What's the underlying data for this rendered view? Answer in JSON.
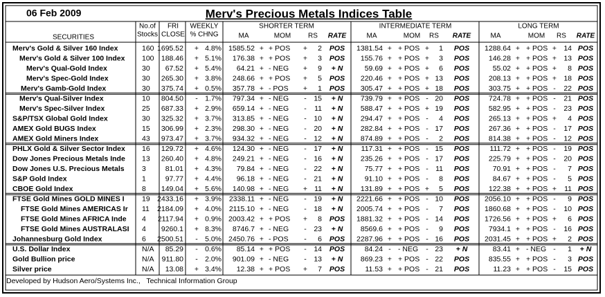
{
  "header": {
    "date": "06 Feb 2009",
    "title": "Merv's Precious Metals Indices Table"
  },
  "table": {
    "group_headers": [
      "SHORTER TERM",
      "INTERMEDIATE TERM",
      "LONG TERM"
    ],
    "columns": [
      "SECURITIES",
      "No.of",
      "Stocks",
      "FRI",
      "CLOSE",
      "WEEKLY",
      "% CHNG",
      "MA",
      "MOM",
      "RS",
      "RATE",
      "MA",
      "MOM",
      "RS",
      "RATE",
      "MA",
      "MOM",
      "RS",
      "RATE"
    ],
    "rows": [
      [
        "Merv's Gold & Silver 160 Index",
        "160",
        "1695.52",
        "+",
        "4.8%",
        "1585.52",
        "+",
        "+ POS",
        "+",
        "2",
        "POS",
        "1381.54",
        "+",
        "+ POS",
        "+",
        "1",
        "POS",
        "1288.64",
        "+",
        "+ POS",
        "+",
        "14",
        "POS"
      ],
      [
        "Merv's Gold & Silver 100 Index",
        "100",
        "188.46",
        "+",
        "5.1%",
        "176.38",
        "+",
        "+ POS",
        "+",
        "3",
        "POS",
        "155.76",
        "+",
        "+ POS",
        "+",
        "3",
        "POS",
        "146.28",
        "+",
        "+ POS",
        "+",
        "13",
        "POS"
      ],
      [
        "Merv's Qual-Gold Index",
        "30",
        "67.52",
        "+",
        "5.4%",
        "64.21",
        "+",
        "- NEG",
        "+",
        "9",
        "+ N",
        "59.69",
        "+",
        "+ POS",
        "+",
        "6",
        "POS",
        "55.02",
        "+",
        "+ POS",
        "+",
        "8",
        "POS"
      ],
      [
        "Merv's Spec-Gold Index",
        "30",
        "265.30",
        "+",
        "3.8%",
        "248.66",
        "+",
        "+ POS",
        "+",
        "5",
        "POS",
        "220.46",
        "+",
        "+ POS",
        "+",
        "13",
        "POS",
        "208.13",
        "+",
        "+ POS",
        "+",
        "18",
        "POS"
      ],
      [
        "Merv's Gamb-Gold Index",
        "30",
        "375.74",
        "+",
        "0.5%",
        "357.78",
        "+",
        "- POS",
        "+",
        "1",
        "POS",
        "305.47",
        "+",
        "+ POS",
        "+",
        "18",
        "POS",
        "303.75",
        "+",
        "+ POS",
        "-",
        "22",
        "POS"
      ],
      [
        "Merv's Qual-Silver Index",
        "10",
        "804.50",
        "-",
        "1.7%",
        "797.34",
        "+",
        "- NEG",
        "-",
        "15",
        "+ N",
        "739.79",
        "+",
        "+ POS",
        "-",
        "20",
        "POS",
        "724.78",
        "+",
        "+ POS",
        "-",
        "21",
        "POS"
      ],
      [
        "Merv's Spec-Silver Index",
        "25",
        "687.33",
        "+",
        "2.9%",
        "659.14",
        "+",
        "- NEG",
        "-",
        "11",
        "+ N",
        "588.47",
        "+",
        "+ POS",
        "+",
        "19",
        "POS",
        "582.95",
        "+",
        "+ POS",
        "-",
        "23",
        "POS"
      ],
      [
        "S&P/TSX Global Gold Index",
        "30",
        "325.32",
        "+",
        "3.7%",
        "313.85",
        "+",
        "- NEG",
        "-",
        "10",
        "+ N",
        "294.47",
        "+",
        "+ POS",
        "-",
        "4",
        "POS",
        "265.13",
        "+",
        "+ POS",
        "+",
        "4",
        "POS"
      ],
      [
        "AMEX Gold BUGS Index",
        "15",
        "306.99",
        "+",
        "2.3%",
        "298.30",
        "+",
        "- NEG",
        "-",
        "20",
        "+ N",
        "282.84",
        "+",
        "+ POS",
        "-",
        "17",
        "POS",
        "267.36",
        "+",
        "+ POS",
        "-",
        "17",
        "POS"
      ],
      [
        "AMEX Gold Miners Index",
        "43",
        "973.47",
        "+",
        "3.7%",
        "934.32",
        "+",
        "- NEG",
        "-",
        "12",
        "+ N",
        "874.89",
        "+",
        "+ POS",
        "-",
        "2",
        "POS",
        "814.38",
        "+",
        "+ POS",
        "-",
        "12",
        "POS"
      ],
      [
        "PHLX Gold & Silver Sector Index",
        "16",
        "129.72",
        "+",
        "4.6%",
        "124.30",
        "+",
        "- NEG",
        "-",
        "17",
        "+ N",
        "117.31",
        "+",
        "+ POS",
        "-",
        "15",
        "POS",
        "111.72",
        "+",
        "+ POS",
        "-",
        "19",
        "POS"
      ],
      [
        "Dow Jones Precious Metals Inde",
        "13",
        "260.40",
        "+",
        "4.8%",
        "249.21",
        "+",
        "- NEG",
        "-",
        "16",
        "+ N",
        "235.26",
        "+",
        "+ POS",
        "-",
        "17",
        "POS",
        "225.79",
        "+",
        "+ POS",
        "-",
        "20",
        "POS"
      ],
      [
        "Dow Jones U.S. Precious Metals",
        "3",
        "81.01",
        "+",
        "4.3%",
        "79.84",
        "+",
        "- NEG",
        "-",
        "22",
        "+ N",
        "75.77",
        "+",
        "+ POS",
        "-",
        "11",
        "POS",
        "70.91",
        "+",
        "+ POS",
        "-",
        "7",
        "POS"
      ],
      [
        "S&P Gold Index",
        "1",
        "97.77",
        "+",
        "4.4%",
        "96.18",
        "+",
        "- NEG",
        "-",
        "21",
        "+ N",
        "91.10",
        "+",
        "+ POS",
        "-",
        "8",
        "POS",
        "84.67",
        "+",
        "+ POS",
        "-",
        "5",
        "POS"
      ],
      [
        "CBOE Gold Index",
        "8",
        "149.04",
        "+",
        "5.6%",
        "140.98",
        "+",
        "- NEG",
        "+",
        "11",
        "+ N",
        "131.89",
        "+",
        "+ POS",
        "+",
        "5",
        "POS",
        "122.38",
        "+",
        "+ POS",
        "+",
        "11",
        "POS"
      ],
      [
        "FTSE Gold Mines GOLD MINES I",
        "19",
        "2433.16",
        "+",
        "3.9%",
        "2338.11",
        "+",
        "- NEG",
        "-",
        "19",
        "+ N",
        "2221.66",
        "+",
        "+ POS",
        "-",
        "10",
        "POS",
        "2056.10",
        "+",
        "+ POS",
        "-",
        "9",
        "POS"
      ],
      [
        "FTSE Gold Mines AMERICAS Ir",
        "11",
        "2184.09",
        "+",
        "4.0%",
        "2115.10",
        "+",
        "- NEG",
        "-",
        "18",
        "+ N",
        "2005.74",
        "+",
        "+ POS",
        "-",
        "7",
        "POS",
        "1860.68",
        "+",
        "+ POS",
        "-",
        "10",
        "POS"
      ],
      [
        "FTSE Gold Mines AFRICA Inde",
        "4",
        "2117.94",
        "+",
        "0.9%",
        "2003.42",
        "+",
        "+ POS",
        "+",
        "8",
        "POS",
        "1881.32",
        "+",
        "+ POS",
        "-",
        "14",
        "POS",
        "1726.56",
        "+",
        "+ POS",
        "+",
        "6",
        "POS"
      ],
      [
        "FTSE Gold Mines AUSTRALASI",
        "4",
        "9260.1",
        "+",
        "8.3%",
        "8746.7",
        "+",
        "- NEG",
        "-",
        "23",
        "+ N",
        "8569.6",
        "+",
        "+ POS",
        "-",
        "9",
        "POS",
        "7934.1",
        "+",
        "+ POS",
        "-",
        "16",
        "POS"
      ],
      [
        "Johannesburg Gold Index",
        "6",
        "2500.51",
        "-",
        "5.0%",
        "2450.76",
        "+",
        "- POS",
        "-",
        "6",
        "POS",
        "2287.96",
        "+",
        "+ POS",
        "-",
        "16",
        "POS",
        "2031.45",
        "+",
        "+ POS",
        "+",
        "2",
        "POS"
      ],
      [
        "U.S. Dollar Index",
        "N/A",
        "85.29",
        "-",
        "0.6%",
        "85.14",
        "+",
        "+ POS",
        "-",
        "14",
        "POS",
        "84.24",
        "-",
        "- NEG",
        "-",
        "23",
        "+ N",
        "83.41",
        "+",
        "- NEG",
        "-",
        "1",
        "+ N"
      ],
      [
        "Gold Bullion price",
        "N/A",
        "911.80",
        "-",
        "2.0%",
        "901.09",
        "+",
        "- NEG",
        "-",
        "13",
        "+ N",
        "869.23",
        "+",
        "+ POS",
        "-",
        "22",
        "POS",
        "835.55",
        "+",
        "+ POS",
        "-",
        "3",
        "POS"
      ],
      [
        "Silver price",
        "N/A",
        "13.08",
        "+",
        "3.4%",
        "12.38",
        "+",
        "+ POS",
        "+",
        "7",
        "POS",
        "11.53",
        "+",
        "+ POS",
        "-",
        "21",
        "POS",
        "11.23",
        "+",
        "+ POS",
        "-",
        "15",
        "POS"
      ]
    ]
  },
  "footer": "Developed by Hudson Aero/Systems Inc.,   Technical Information Group"
}
